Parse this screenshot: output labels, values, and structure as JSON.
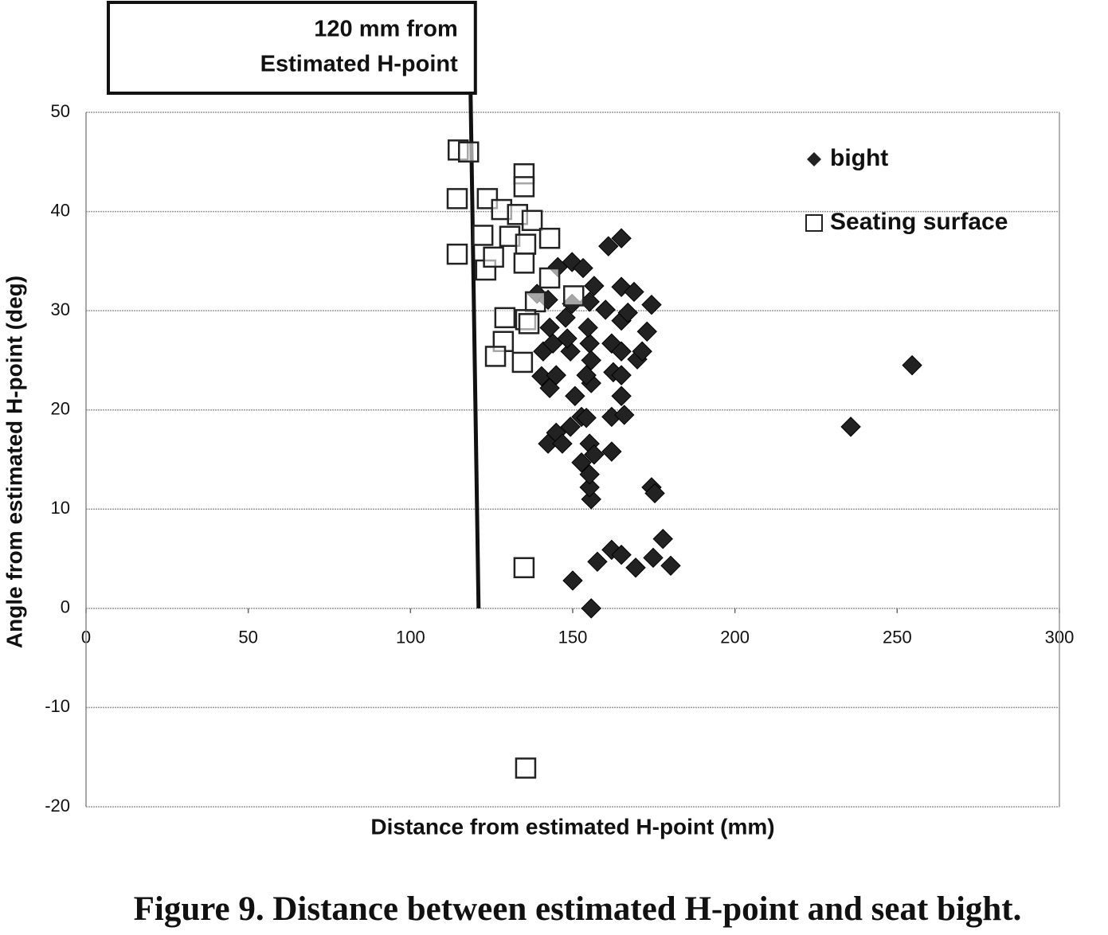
{
  "chart_data": {
    "type": "scatter",
    "x_label": "Distance from estimated H-point (mm)",
    "y_label": "Angle from estimated H-point (deg)",
    "caption": "Figure 9.  Distance between estimated H-point and seat bight.",
    "xlim": [
      0,
      300
    ],
    "xticks": [
      0,
      50,
      100,
      150,
      200,
      250,
      300
    ],
    "ylim": [
      -20,
      50
    ],
    "yticks": [
      -20,
      -10,
      0,
      10,
      20,
      30,
      40,
      50
    ],
    "grid": true,
    "legend": "upper right",
    "annotation": {
      "lines": [
        "120 mm from",
        "Estimated H-point"
      ],
      "x": 120
    },
    "series": [
      {
        "name": "bight",
        "marker": "diamond",
        "color": "#222222",
        "x": [
          254.6,
          235.7,
          155.7,
          150,
          157.6,
          162,
          165,
          169.4,
          174.8,
          177.8,
          180.2,
          174.3,
          175.3,
          155.7,
          155.2,
          155.2,
          152.7,
          155.2,
          162,
          156.6,
          142.4,
          144.9,
          146.8,
          149.3,
          152.7,
          154.2,
          162,
          165.9,
          150.7,
          165,
          142.9,
          140.4,
          144.9,
          155.7,
          154.2,
          162.5,
          165,
          140.9,
          143.9,
          149.3,
          148.3,
          155.2,
          155.7,
          162,
          165,
          169.9,
          171.4,
          142.9,
          147.8,
          154.7,
          165,
          167,
          172.9,
          139,
          142.4,
          149.8,
          155.2,
          160.1,
          174.3,
          156.6,
          165,
          168.9,
          145.4,
          149.8,
          153.2,
          161,
          165
        ],
        "values": [
          24.5,
          18.3,
          0,
          2.8,
          4.7,
          5.9,
          5.4,
          4.1,
          5.1,
          7.0,
          4.3,
          12.2,
          11.6,
          11.0,
          12.2,
          13.5,
          14.7,
          16.6,
          15.8,
          15.5,
          16.6,
          17.7,
          16.6,
          18.3,
          19.3,
          19.2,
          19.3,
          19.5,
          21.4,
          21.4,
          22.2,
          23.4,
          23.5,
          22.7,
          23.5,
          23.8,
          23.5,
          25.9,
          26.7,
          25.9,
          27.2,
          26.7,
          25.0,
          26.7,
          25.9,
          25.1,
          25.9,
          28.3,
          29.3,
          28.3,
          29.0,
          29.8,
          27.9,
          31.7,
          31.1,
          30.7,
          30.9,
          30.1,
          30.6,
          32.5,
          32.4,
          31.9,
          34.4,
          34.9,
          34.3,
          36.5,
          37.3
        ]
      },
      {
        "name": "Seating surface",
        "marker": "square",
        "color": "#222222",
        "x": [
          114.7,
          117.9,
          114.4,
          114.4,
          123.7,
          122.3,
          123.2,
          125.6,
          128.1,
          130.6,
          133,
          135,
          135,
          137.5,
          135.5,
          135,
          142.9,
          142.9,
          138.5,
          129.1,
          135.5,
          136.5,
          128.6,
          126.2,
          134.5,
          150.3,
          135,
          135.5
        ],
        "values": [
          46.2,
          46.0,
          41.3,
          35.7,
          41.3,
          37.6,
          34.1,
          35.4,
          40.2,
          37.5,
          39.7,
          43.8,
          42.5,
          39.1,
          36.7,
          34.8,
          37.3,
          33.3,
          30.9,
          29.3,
          29.1,
          28.7,
          26.9,
          25.4,
          24.8,
          31.5,
          4.1,
          -16.1
        ]
      }
    ]
  }
}
